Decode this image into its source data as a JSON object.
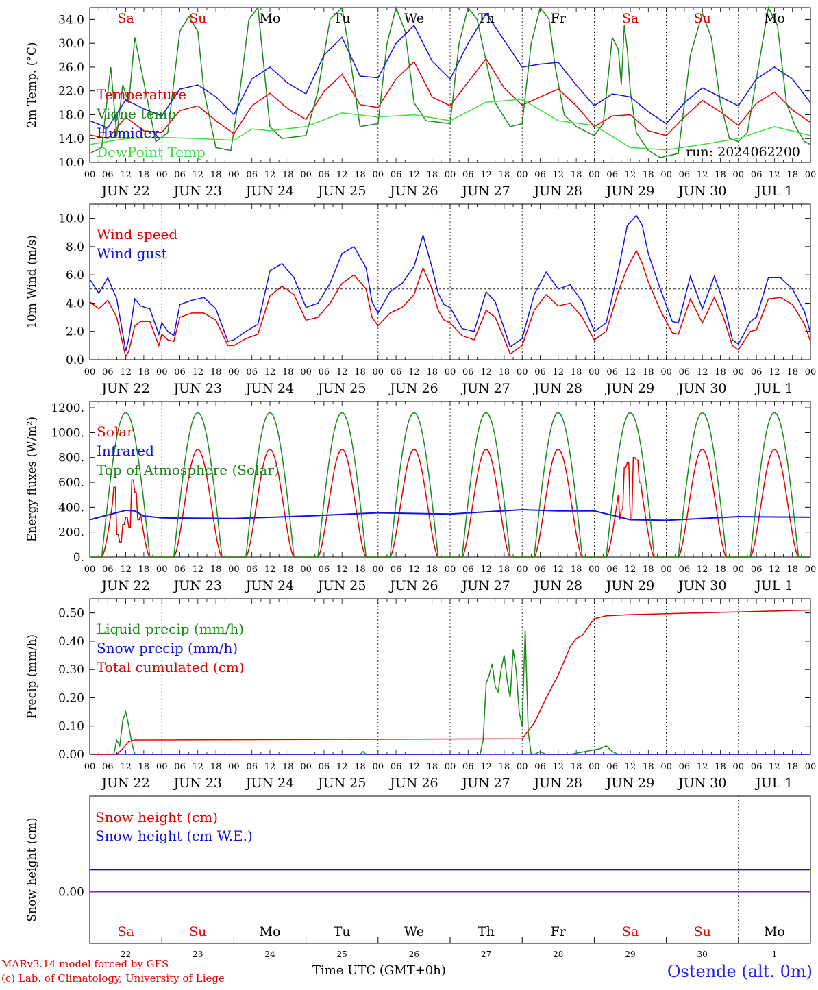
{
  "run_label": "run: 2024062200",
  "footer": {
    "credit_line1": "MARv3.14 model forced by GFS",
    "credit_line2": "(c) Lab. of Climatology, University of Liege",
    "xaxis_title": "Time UTC (GMT+0h)",
    "station": "Ostende (alt. 0m)"
  },
  "days": [
    "JUN 22",
    "JUN 23",
    "JUN 24",
    "JUN 25",
    "JUN 26",
    "JUN 27",
    "JUN 28",
    "JUN 29",
    "JUN 30",
    "JUL  1"
  ],
  "weekdays": [
    {
      "label": "Sa",
      "weekend": true
    },
    {
      "label": "Su",
      "weekend": true
    },
    {
      "label": "Mo",
      "weekend": false
    },
    {
      "label": "Tu",
      "weekend": false
    },
    {
      "label": "We",
      "weekend": false
    },
    {
      "label": "Th",
      "weekend": false
    },
    {
      "label": "Fr",
      "weekend": false
    },
    {
      "label": "Sa",
      "weekend": true
    },
    {
      "label": "Su",
      "weekend": true
    },
    {
      "label": "Mo",
      "weekend": false
    }
  ],
  "bottom_day_numbers": [
    "22",
    "23",
    "24",
    "25",
    "26",
    "27",
    "28",
    "29",
    "30",
    "1"
  ],
  "hour_ticks": [
    "00",
    "06",
    "12",
    "18"
  ],
  "chart_data": [
    {
      "type": "line",
      "ylabel": "2m Temp. (°C)",
      "ylim": [
        10,
        36
      ],
      "yticks": [
        "10.0",
        "14.0",
        "18.0",
        "22.0",
        "26.0",
        "30.0",
        "34.0"
      ],
      "x_unit": "hours since Jun 22 00 UTC",
      "series": [
        {
          "name": "Temperature",
          "color": "#e00000",
          "x": [
            0,
            6,
            12,
            18,
            24,
            30,
            36,
            42,
            48,
            54,
            60,
            66,
            72,
            78,
            84,
            90,
            96,
            102,
            108,
            114,
            120,
            126,
            132,
            138,
            144,
            150,
            156,
            162,
            168,
            174,
            180,
            186,
            192,
            198,
            204,
            210,
            216,
            222,
            228,
            234,
            240
          ],
          "y": [
            14.6,
            14.0,
            17.6,
            15.3,
            15.0,
            18.7,
            19.5,
            17.0,
            14.8,
            19.5,
            21.6,
            19.0,
            17.2,
            21.9,
            24.8,
            19.7,
            19.2,
            24.0,
            26.9,
            21.0,
            19.5,
            23.5,
            27.4,
            22.5,
            19.6,
            21.0,
            22.3,
            19.5,
            16.0,
            17.8,
            18.0,
            15.3,
            14.5,
            17.6,
            20.4,
            18.5,
            16.2,
            19.9,
            21.8,
            18.8,
            16.7
          ]
        },
        {
          "name": "Vigne temp",
          "color": "#1a8a1a",
          "x": [
            0,
            4,
            7,
            9,
            11,
            13,
            15,
            17,
            22,
            26,
            30,
            33,
            36,
            38,
            42,
            47,
            50,
            53,
            56,
            58,
            60,
            64,
            72,
            76,
            80,
            84,
            86,
            90,
            96,
            99,
            102,
            105,
            108,
            112,
            120,
            123,
            126,
            129,
            132,
            135,
            140,
            144,
            147,
            150,
            153,
            155,
            158,
            162,
            168,
            171,
            174,
            176,
            177,
            178,
            179,
            180,
            182,
            186,
            190,
            196,
            200,
            204,
            207,
            210,
            213,
            216,
            219,
            222,
            226,
            229,
            232,
            235,
            238,
            240
          ],
          "y": [
            11.5,
            12.5,
            26.0,
            14.5,
            23.0,
            20.0,
            31.0,
            26.0,
            13.5,
            15.0,
            32.0,
            34.5,
            32.0,
            22.0,
            12.5,
            12.0,
            22.0,
            34.0,
            36.0,
            26.0,
            16.0,
            14.0,
            14.5,
            22.0,
            34.0,
            36.0,
            30.0,
            16.0,
            16.5,
            30.0,
            36.0,
            32.0,
            20.0,
            17.0,
            16.5,
            30.0,
            36.0,
            34.0,
            27.0,
            20.0,
            16.0,
            16.5,
            30.0,
            36.0,
            34.0,
            26.0,
            18.0,
            16.0,
            14.5,
            16.5,
            31.0,
            29.0,
            23.0,
            33.0,
            29.0,
            22.0,
            15.0,
            12.0,
            10.8,
            11.5,
            28.0,
            35.0,
            31.0,
            20.0,
            14.0,
            13.5,
            15.0,
            24.0,
            36.0,
            33.0,
            20.0,
            16.0,
            13.5,
            13.0
          ]
        },
        {
          "name": "Humidex",
          "color": "#1212e0",
          "x": [
            0,
            6,
            12,
            18,
            24,
            30,
            36,
            42,
            48,
            54,
            60,
            66,
            72,
            78,
            84,
            90,
            96,
            102,
            108,
            114,
            120,
            126,
            132,
            138,
            144,
            150,
            156,
            162,
            168,
            174,
            180,
            186,
            192,
            198,
            204,
            210,
            216,
            222,
            228,
            234,
            240
          ],
          "y": [
            17.0,
            15.8,
            20.5,
            19.0,
            17.8,
            22.3,
            23.0,
            21.0,
            18.0,
            24.0,
            26.0,
            23.3,
            21.5,
            28.0,
            31.0,
            24.5,
            24.2,
            30.0,
            33.0,
            27.0,
            24.0,
            30.0,
            35.0,
            30.5,
            26.0,
            26.5,
            26.8,
            23.0,
            19.5,
            21.5,
            21.0,
            18.5,
            16.5,
            20.0,
            22.5,
            21.0,
            19.5,
            24.0,
            26.0,
            24.0,
            20.0
          ]
        },
        {
          "name": "DewPoint Temp",
          "color": "#3ce03c",
          "x": [
            0,
            12,
            24,
            36,
            48,
            54,
            60,
            72,
            84,
            96,
            108,
            120,
            132,
            144,
            156,
            168,
            180,
            192,
            204,
            216,
            228,
            240
          ],
          "y": [
            13.0,
            14.0,
            14.2,
            14.0,
            13.7,
            15.6,
            15.3,
            16.0,
            18.3,
            17.6,
            18.0,
            17.0,
            20.1,
            20.6,
            17.0,
            16.2,
            12.5,
            12.1,
            13.0,
            14.0,
            16.0,
            14.5
          ]
        }
      ]
    },
    {
      "type": "line",
      "ylabel": "10m Wind (m/s)",
      "ylim": [
        0,
        11
      ],
      "yticks": [
        "0.0",
        "2.0",
        "4.0",
        "6.0",
        "8.0",
        "10.0"
      ],
      "reference_line": 5.0,
      "series": [
        {
          "name": "Wind speed",
          "color": "#e00000",
          "x": [
            0,
            3,
            6,
            9,
            12,
            13,
            15,
            17,
            20,
            23,
            24,
            26,
            28,
            30,
            34,
            38,
            42,
            46,
            48,
            52,
            56,
            60,
            64,
            68,
            72,
            76,
            80,
            84,
            88,
            92,
            94,
            96,
            100,
            104,
            108,
            111,
            114,
            116,
            118,
            120,
            124,
            128,
            132,
            135,
            138,
            140,
            144,
            148,
            152,
            156,
            160,
            164,
            168,
            172,
            176,
            179,
            182,
            184,
            186,
            190,
            194,
            196,
            200,
            204,
            208,
            211,
            214,
            216,
            220,
            222,
            226,
            230,
            234,
            238,
            240
          ],
          "y": [
            4.1,
            3.6,
            4.2,
            3.0,
            0.2,
            0.6,
            2.4,
            2.7,
            2.7,
            1.0,
            1.8,
            1.4,
            1.3,
            3.0,
            3.3,
            3.3,
            2.8,
            1.0,
            1.0,
            1.5,
            1.8,
            4.5,
            5.2,
            4.6,
            2.8,
            3.0,
            4.0,
            5.4,
            6.0,
            5.0,
            3.0,
            2.4,
            3.3,
            3.7,
            4.6,
            6.5,
            5.0,
            3.5,
            2.8,
            2.6,
            1.7,
            1.4,
            3.5,
            3.0,
            1.5,
            0.4,
            1.0,
            3.5,
            4.6,
            3.8,
            4.0,
            3.0,
            1.4,
            2.0,
            4.8,
            6.5,
            7.7,
            6.8,
            5.5,
            3.5,
            1.9,
            1.8,
            4.3,
            2.6,
            4.4,
            3.0,
            1.0,
            0.7,
            2.0,
            2.1,
            4.3,
            4.4,
            3.9,
            2.5,
            1.3
          ]
        },
        {
          "name": "Wind gust",
          "color": "#1212e0",
          "x": [
            0,
            3,
            6,
            9,
            12,
            13,
            15,
            17,
            20,
            23,
            24,
            26,
            28,
            30,
            34,
            38,
            42,
            46,
            48,
            52,
            56,
            60,
            64,
            68,
            72,
            76,
            80,
            84,
            88,
            92,
            94,
            96,
            100,
            104,
            108,
            111,
            114,
            116,
            118,
            120,
            124,
            128,
            132,
            135,
            138,
            140,
            144,
            148,
            152,
            156,
            160,
            164,
            168,
            172,
            176,
            179,
            182,
            184,
            186,
            190,
            194,
            196,
            200,
            204,
            208,
            211,
            214,
            216,
            220,
            222,
            226,
            230,
            234,
            238,
            240
          ],
          "y": [
            5.7,
            4.7,
            5.8,
            4.3,
            0.6,
            1.5,
            4.3,
            3.8,
            3.6,
            1.8,
            2.6,
            2.0,
            1.7,
            3.9,
            4.2,
            4.4,
            3.6,
            1.3,
            1.4,
            2.0,
            2.5,
            6.3,
            6.8,
            5.8,
            3.7,
            4.0,
            5.4,
            7.5,
            8.0,
            6.5,
            4.1,
            3.3,
            4.8,
            5.4,
            6.6,
            8.8,
            6.5,
            4.7,
            3.9,
            3.7,
            2.2,
            2.0,
            4.8,
            4.1,
            2.2,
            0.9,
            1.5,
            4.6,
            6.2,
            5.0,
            5.3,
            4.1,
            2.0,
            2.6,
            6.3,
            9.5,
            10.2,
            9.5,
            7.5,
            5.0,
            2.7,
            2.6,
            5.9,
            3.6,
            5.9,
            4.1,
            1.4,
            1.1,
            2.7,
            3.0,
            5.8,
            5.8,
            5.0,
            3.4,
            1.9
          ]
        }
      ]
    },
    {
      "type": "line",
      "ylabel": "Energy fluxes (W/m²)",
      "ylim": [
        0,
        1250
      ],
      "yticks": [
        "0.",
        "200.",
        "400.",
        "600.",
        "800.",
        "1000.",
        "1200."
      ],
      "series": [
        {
          "name": "Solar",
          "color": "#e00000",
          "peak": 865,
          "note": "diurnal cycle, cloud dips on Jun 22 and Jun 29"
        },
        {
          "name": "Infrared",
          "color": "#1212e0",
          "x": [
            0,
            12,
            15,
            18,
            24,
            48,
            72,
            96,
            120,
            144,
            156,
            168,
            180,
            192,
            216,
            240
          ],
          "y": [
            300,
            375,
            370,
            330,
            315,
            310,
            330,
            355,
            345,
            380,
            370,
            370,
            300,
            295,
            325,
            320
          ]
        },
        {
          "name": "Top of Atmosphere (Solar)",
          "color": "#1a8a1a",
          "peak": 1160
        }
      ]
    },
    {
      "type": "line",
      "ylabel": "Precip (mm/h)",
      "ylim": [
        0,
        0.55
      ],
      "yticks": [
        "0.00",
        "0.10",
        "0.20",
        "0.30",
        "0.40",
        "0.50"
      ],
      "series": [
        {
          "name": "Liquid precip (mm/h)",
          "color": "#1a8a1a",
          "x": [
            0,
            8,
            9,
            10,
            11,
            12,
            13,
            14,
            15,
            16,
            90,
            91,
            92,
            130,
            131,
            132,
            133,
            134,
            135,
            136,
            137,
            138,
            139,
            140,
            141,
            142,
            143,
            144,
            145,
            146,
            147,
            148,
            150,
            152,
            154,
            156,
            158,
            160,
            170,
            172,
            174,
            176,
            178,
            240
          ],
          "y": [
            0,
            0,
            0.05,
            0.03,
            0.12,
            0.15,
            0.1,
            0.04,
            0,
            0,
            0,
            0.01,
            0,
            0,
            0.05,
            0.25,
            0.28,
            0.32,
            0.24,
            0.22,
            0.3,
            0.35,
            0.26,
            0.2,
            0.37,
            0.3,
            0.15,
            0.1,
            0.44,
            0.08,
            0,
            0,
            0.01,
            0,
            0,
            0,
            0,
            0,
            0.02,
            0.03,
            0.01,
            0,
            0,
            0
          ]
        },
        {
          "name": "Snow precip (mm/h)",
          "color": "#1212e0",
          "x": [
            0,
            240
          ],
          "y": [
            0,
            0
          ]
        },
        {
          "name": "Total cumulated (cm)",
          "color": "#e00000",
          "x": [
            0,
            9,
            11,
            13,
            15,
            144,
            148,
            152,
            156,
            160,
            162,
            164,
            168,
            172,
            180,
            240
          ],
          "y": [
            0,
            0,
            0.02,
            0.045,
            0.051,
            0.055,
            0.11,
            0.2,
            0.28,
            0.38,
            0.41,
            0.42,
            0.48,
            0.49,
            0.494,
            0.51
          ]
        }
      ]
    },
    {
      "type": "line",
      "ylabel": "Snow height (cm)",
      "yticks": [
        "0.00"
      ],
      "series": [
        {
          "name": "Snow height (cm)",
          "color": "#e00000",
          "x": [
            0,
            240
          ],
          "y": [
            0,
            0
          ]
        },
        {
          "name": "Snow height (cm W.E.)",
          "color": "#1212e0",
          "x": [
            0,
            240
          ],
          "y": [
            0,
            0
          ]
        }
      ]
    }
  ]
}
